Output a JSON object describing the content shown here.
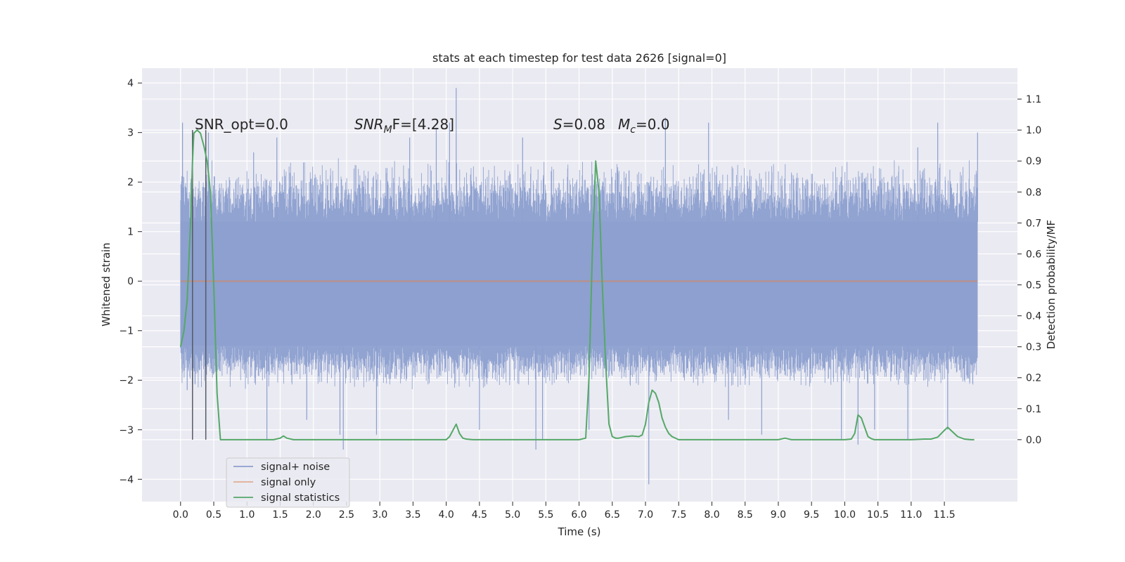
{
  "chart_data": {
    "type": "line",
    "title": "stats at each timestep for test data 2626 [signal=0]",
    "xlabel": "Time (s)",
    "ylabel_left": "Whitened strain",
    "ylabel_right": "Detection probability/MF",
    "xlim": [
      -0.58,
      12.6
    ],
    "ylim_left": [
      -4.45,
      4.3
    ],
    "ylim_right": [
      -0.2,
      1.2
    ],
    "x_ticks": [
      "0.0",
      "0.5",
      "1.0",
      "1.5",
      "2.0",
      "2.5",
      "3.0",
      "3.5",
      "4.0",
      "4.5",
      "5.0",
      "5.5",
      "6.0",
      "6.5",
      "7.0",
      "7.5",
      "8.0",
      "8.5",
      "9.0",
      "9.5",
      "10.0",
      "10.5",
      "11.0",
      "11.5"
    ],
    "y_ticks_left": [
      "4",
      "3",
      "2",
      "1",
      "0",
      "−1",
      "−2",
      "−3",
      "−4"
    ],
    "y_ticks_right": [
      "1.1",
      "1.0",
      "0.9",
      "0.8",
      "0.7",
      "0.6",
      "0.5",
      "0.4",
      "0.3",
      "0.2",
      "0.1",
      "0.0"
    ],
    "grid": true,
    "legend_position": "lower-left",
    "annotations": {
      "snr_opt": "SNR_opt=0.0",
      "snr_mf_prefix": "SNR",
      "snr_mf_sub": "M",
      "snr_mf_suffix": "F=[4.28]",
      "s_label": "S",
      "s_value": "=0.08",
      "mc_label": "M",
      "mc_sub": "c",
      "mc_value": "=0.0"
    },
    "vertical_markers_x": [
      0.18,
      0.38
    ],
    "series": [
      {
        "name": "signal+ noise",
        "color": "#8c9fcf",
        "axis": "left",
        "x_range": [
          0.0,
          12.0
        ],
        "core_range": [
          -1.3,
          1.2
        ],
        "envelope_range": [
          -2.2,
          2.5
        ],
        "spikes": [
          {
            "x": 0.03,
            "y": 3.2
          },
          {
            "x": 0.1,
            "y": -2.2
          },
          {
            "x": 0.42,
            "y": 3.0
          },
          {
            "x": 1.1,
            "y": 2.6
          },
          {
            "x": 1.3,
            "y": -3.2
          },
          {
            "x": 1.45,
            "y": 2.9
          },
          {
            "x": 1.9,
            "y": -2.8
          },
          {
            "x": 2.4,
            "y": -3.1
          },
          {
            "x": 2.45,
            "y": -3.4
          },
          {
            "x": 2.95,
            "y": -3.1
          },
          {
            "x": 3.45,
            "y": 2.9
          },
          {
            "x": 3.85,
            "y": 3.1
          },
          {
            "x": 4.05,
            "y": 3.2
          },
          {
            "x": 4.15,
            "y": 3.9
          },
          {
            "x": 4.5,
            "y": -3.0
          },
          {
            "x": 5.15,
            "y": 2.9
          },
          {
            "x": 5.35,
            "y": -3.4
          },
          {
            "x": 5.45,
            "y": -3.2
          },
          {
            "x": 6.15,
            "y": -3.0
          },
          {
            "x": 7.05,
            "y": -4.1
          },
          {
            "x": 7.3,
            "y": 3.3
          },
          {
            "x": 7.95,
            "y": 3.2
          },
          {
            "x": 8.25,
            "y": -2.8
          },
          {
            "x": 8.75,
            "y": -3.1
          },
          {
            "x": 9.95,
            "y": -3.2
          },
          {
            "x": 10.2,
            "y": -3.3
          },
          {
            "x": 10.45,
            "y": -3.0
          },
          {
            "x": 10.95,
            "y": -3.2
          },
          {
            "x": 11.1,
            "y": 2.7
          },
          {
            "x": 11.4,
            "y": 3.2
          },
          {
            "x": 11.55,
            "y": -3.0
          },
          {
            "x": 12.0,
            "y": 3.0
          }
        ]
      },
      {
        "name": "signal only",
        "color": "#dd8452",
        "axis": "left",
        "x": [
          0.0,
          12.0
        ],
        "y": [
          0.0,
          0.0
        ]
      },
      {
        "name": "signal statistics",
        "color": "#55a868",
        "axis": "right",
        "x": [
          0.0,
          0.05,
          0.1,
          0.15,
          0.18,
          0.2,
          0.25,
          0.3,
          0.35,
          0.4,
          0.45,
          0.5,
          0.55,
          0.6,
          0.65,
          0.7,
          0.8,
          1.0,
          1.2,
          1.4,
          1.5,
          1.55,
          1.6,
          1.7,
          1.8,
          2.0,
          2.5,
          3.0,
          3.5,
          4.0,
          4.05,
          4.1,
          4.15,
          4.2,
          4.25,
          4.3,
          4.4,
          4.6,
          5.0,
          5.5,
          6.0,
          6.1,
          6.15,
          6.2,
          6.25,
          6.3,
          6.35,
          6.4,
          6.45,
          6.5,
          6.55,
          6.6,
          6.7,
          6.8,
          6.9,
          6.95,
          7.0,
          7.05,
          7.1,
          7.15,
          7.2,
          7.25,
          7.3,
          7.35,
          7.4,
          7.5,
          7.6,
          7.8,
          8.0,
          8.5,
          9.0,
          9.1,
          9.2,
          9.5,
          10.0,
          10.1,
          10.15,
          10.2,
          10.25,
          10.3,
          10.35,
          10.4,
          10.45,
          10.5,
          10.6,
          11.0,
          11.2,
          11.3,
          11.4,
          11.5,
          11.55,
          11.6,
          11.7,
          11.8,
          11.9,
          11.95
        ],
        "y": [
          0.3,
          0.35,
          0.45,
          0.7,
          0.9,
          0.99,
          1.0,
          0.99,
          0.95,
          0.9,
          0.8,
          0.5,
          0.15,
          0.0,
          0.0,
          0.0,
          0.0,
          0.0,
          0.0,
          0.0,
          0.005,
          0.012,
          0.005,
          0.0,
          0.0,
          0.0,
          0.0,
          0.0,
          0.0,
          0.0,
          0.01,
          0.03,
          0.05,
          0.02,
          0.005,
          0.002,
          0.0,
          0.0,
          0.0,
          0.0,
          0.0,
          0.005,
          0.2,
          0.6,
          0.9,
          0.8,
          0.5,
          0.25,
          0.05,
          0.01,
          0.005,
          0.005,
          0.01,
          0.012,
          0.01,
          0.015,
          0.05,
          0.12,
          0.16,
          0.15,
          0.12,
          0.07,
          0.04,
          0.02,
          0.01,
          0.0,
          0.0,
          0.0,
          0.0,
          0.0,
          0.0,
          0.005,
          0.0,
          0.0,
          0.0,
          0.002,
          0.02,
          0.08,
          0.07,
          0.04,
          0.01,
          0.003,
          0.0,
          0.0,
          0.0,
          0.0,
          0.002,
          0.002,
          0.008,
          0.03,
          0.04,
          0.03,
          0.01,
          0.002,
          0.0,
          0.0
        ]
      }
    ]
  }
}
